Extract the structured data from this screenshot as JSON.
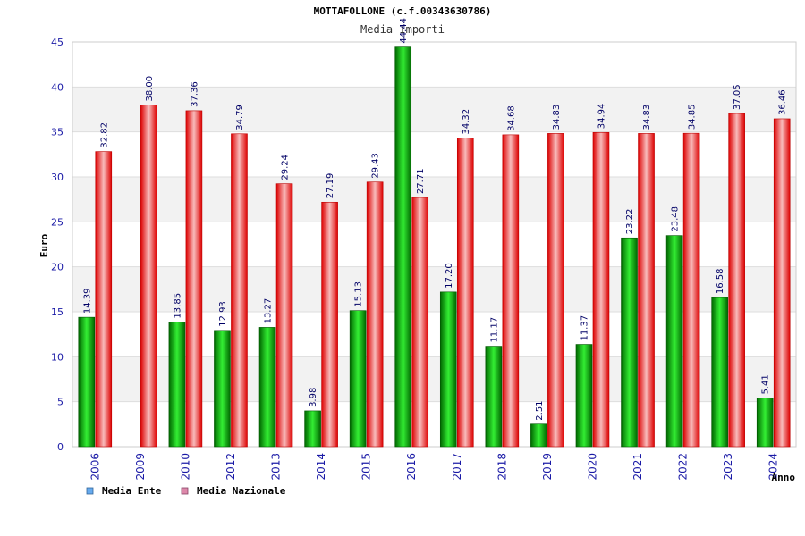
{
  "chart_data": {
    "type": "bar",
    "title": "MOTTAFOLLONE (c.f.00343630786)",
    "subtitle": "Media Importi",
    "ylabel": "Euro",
    "xlabel": "Anno",
    "ylim": [
      0,
      45
    ],
    "yticks": [
      0,
      5,
      10,
      15,
      20,
      25,
      30,
      35,
      40,
      45
    ],
    "grid": true,
    "legend_position": "bottom-left",
    "categories": [
      "2006",
      "2009",
      "2010",
      "2012",
      "2013",
      "2014",
      "2015",
      "2016",
      "2017",
      "2018",
      "2019",
      "2020",
      "2021",
      "2022",
      "2023",
      "2024"
    ],
    "series": [
      {
        "name": "Media Ente",
        "color": "#00aa00",
        "legend_color": "#66aaee",
        "values": [
          14.39,
          null,
          13.85,
          12.93,
          13.27,
          3.98,
          15.13,
          44.44,
          17.2,
          11.17,
          2.51,
          11.37,
          23.22,
          23.48,
          16.58,
          5.41
        ],
        "labels": [
          "14.39",
          "",
          "13.85",
          "12.93",
          "13.27",
          "3.98",
          "15.13",
          "44.44",
          "17.20",
          "11.17",
          "2.51",
          "11.37",
          "23.22",
          "23.48",
          "16.58",
          "5.41"
        ]
      },
      {
        "name": "Media Nazionale",
        "color": "#ee1111",
        "legend_color": "#dd88aa",
        "values": [
          32.82,
          38.0,
          37.36,
          34.79,
          29.24,
          27.19,
          29.43,
          27.71,
          34.32,
          34.68,
          34.83,
          34.94,
          34.83,
          34.85,
          37.05,
          36.46
        ],
        "labels": [
          "32.82",
          "38.00",
          "37.36",
          "34.79",
          "29.24",
          "27.19",
          "29.43",
          "27.71",
          "34.32",
          "34.68",
          "34.83",
          "34.94",
          "34.83",
          "34.85",
          "37.05",
          "36.46"
        ]
      }
    ]
  }
}
